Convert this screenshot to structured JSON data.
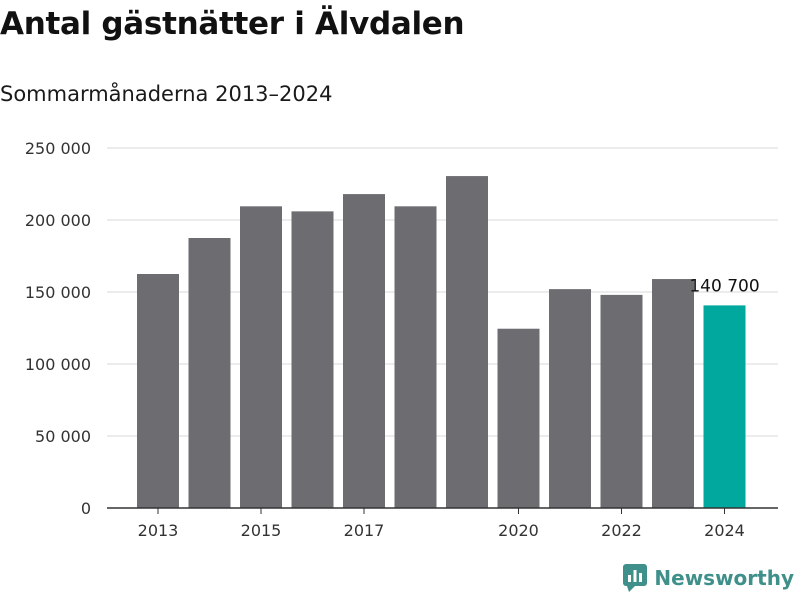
{
  "chart_data": {
    "type": "bar",
    "title": "Antal gästnätter i Älvdalen",
    "subtitle": "Sommarmånaderna 2013–2024",
    "xlabel": "",
    "ylabel": "",
    "categories": [
      "2013",
      "2014",
      "2015",
      "2016",
      "2017",
      "2018",
      "2019",
      "2020",
      "2021",
      "2022",
      "2023",
      "2024"
    ],
    "x_tick_labels": [
      "2013",
      "",
      "2015",
      "",
      "2017",
      "",
      "",
      "2020",
      "",
      "2022",
      "",
      "2024"
    ],
    "values": [
      162500,
      187500,
      209500,
      206000,
      218000,
      209500,
      230500,
      124500,
      152000,
      148000,
      159000,
      140700
    ],
    "ylim": [
      0,
      250000
    ],
    "y_ticks": [
      0,
      50000,
      100000,
      150000,
      200000,
      250000
    ],
    "y_tick_labels": [
      "0",
      "50 000",
      "100 000",
      "150 000",
      "200 000",
      "250 000"
    ],
    "grid": true,
    "highlight_index": 11,
    "data_labels": [
      {
        "index": 11,
        "text": "140 700"
      }
    ],
    "colors": {
      "bar": "#6d6d71",
      "highlight": "#00a89d",
      "grid": "#d9d9d9",
      "axis": "#333333"
    }
  },
  "brand": {
    "name": "Newsworthy",
    "icon": "newsworthy-logo-icon",
    "color": "#3f8f8a"
  }
}
